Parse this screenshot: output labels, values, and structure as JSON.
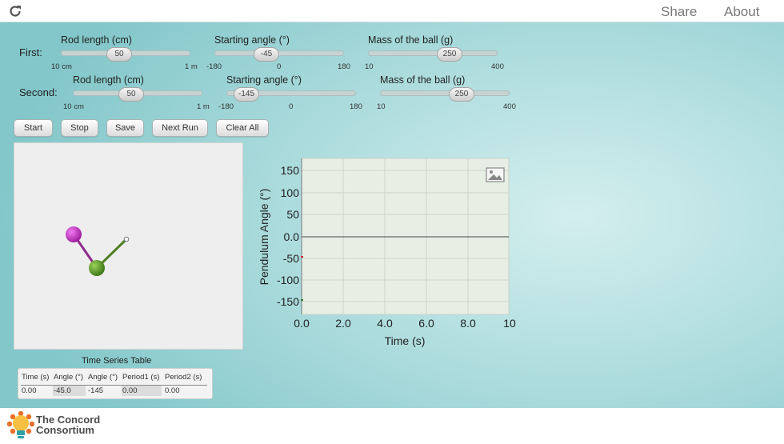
{
  "topbar": {
    "share": "Share",
    "about": "About"
  },
  "first": {
    "label": "First:",
    "rod": {
      "title": "Rod length (cm)",
      "value": "50",
      "min": "10 cm",
      "max": "1 m"
    },
    "angle": {
      "title": "Starting angle (°)",
      "value": "-45",
      "min": "-180",
      "mid": "0",
      "max": "180"
    },
    "mass": {
      "title": "Mass of the ball (g)",
      "value": "250",
      "min": "10",
      "max": "400"
    }
  },
  "second": {
    "label": "Second:",
    "rod": {
      "title": "Rod length (cm)",
      "value": "50",
      "min": "10 cm",
      "max": "1 m"
    },
    "angle": {
      "title": "Starting angle (°)",
      "value": "-145",
      "min": "-180",
      "mid": "0",
      "max": "180"
    },
    "mass": {
      "title": "Mass of the ball (g)",
      "value": "250",
      "min": "10",
      "max": "400"
    }
  },
  "buttons": {
    "start": "Start",
    "stop": "Stop",
    "save": "Save",
    "next_run": "Next Run",
    "clear_all": "Clear All"
  },
  "graph": {
    "ylabel": "Pendulum Angle (°)",
    "xlabel": "Time (s)",
    "yticks": [
      "150",
      "100",
      "50",
      "0.0",
      "-50",
      "-100",
      "-150"
    ],
    "xticks": [
      "0.0",
      "2.0",
      "4.0",
      "6.0",
      "8.0",
      "10"
    ],
    "icon": "image-icon"
  },
  "table": {
    "title": "Time Series Table",
    "headers": [
      "Time (s)",
      "Angle (°)",
      "Angle (°)",
      "Period1 (s)",
      "Period2 (s)"
    ],
    "row": [
      "0.00",
      "-45.0",
      "-145",
      "0.00",
      "0.00"
    ]
  },
  "footer": {
    "logo_line1": "The Concord",
    "logo_line2": "Consortium"
  },
  "colors": {
    "ball1": "#c633c6",
    "ball2": "#5e9a2a",
    "graph_bg": "#e7efe5"
  }
}
